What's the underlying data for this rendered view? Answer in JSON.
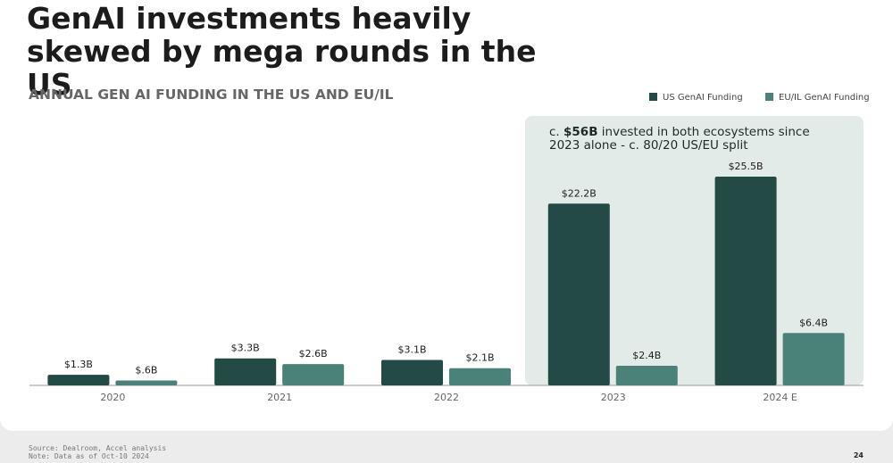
{
  "title": "GenAI investments heavily skewed by mega rounds in the US",
  "chart_data": {
    "type": "bar",
    "title": "ANNUAL GEN AI FUNDING IN THE US AND EU/IL",
    "categories": [
      "2020",
      "2021",
      "2022",
      "2023",
      "2024 E"
    ],
    "series": [
      {
        "name": "US GenAI Funding",
        "color": "#234a45",
        "values": [
          1.3,
          3.3,
          3.1,
          22.2,
          25.5
        ],
        "value_labels": [
          "$1.3B",
          "$3.3B",
          "$3.1B",
          "$22.2B",
          "$25.5B"
        ]
      },
      {
        "name": "EU/IL GenAI Funding",
        "color": "#4a8279",
        "values": [
          0.6,
          2.6,
          2.1,
          2.4,
          6.4
        ],
        "value_labels": [
          "$.6B",
          "$2.6B",
          "$2.1B",
          "$2.4B",
          "$6.4B"
        ]
      }
    ],
    "legend": "top-right",
    "annotation": [
      "c. ",
      "$56B",
      " invested in both ecosystems since 2023 alone - c. 80/20 US/EU split"
    ]
  },
  "footer": {
    "source": "Source: Dealroom, Accel analysis",
    "note": "Note: Data as of Oct-10 2024",
    "page": "24"
  }
}
